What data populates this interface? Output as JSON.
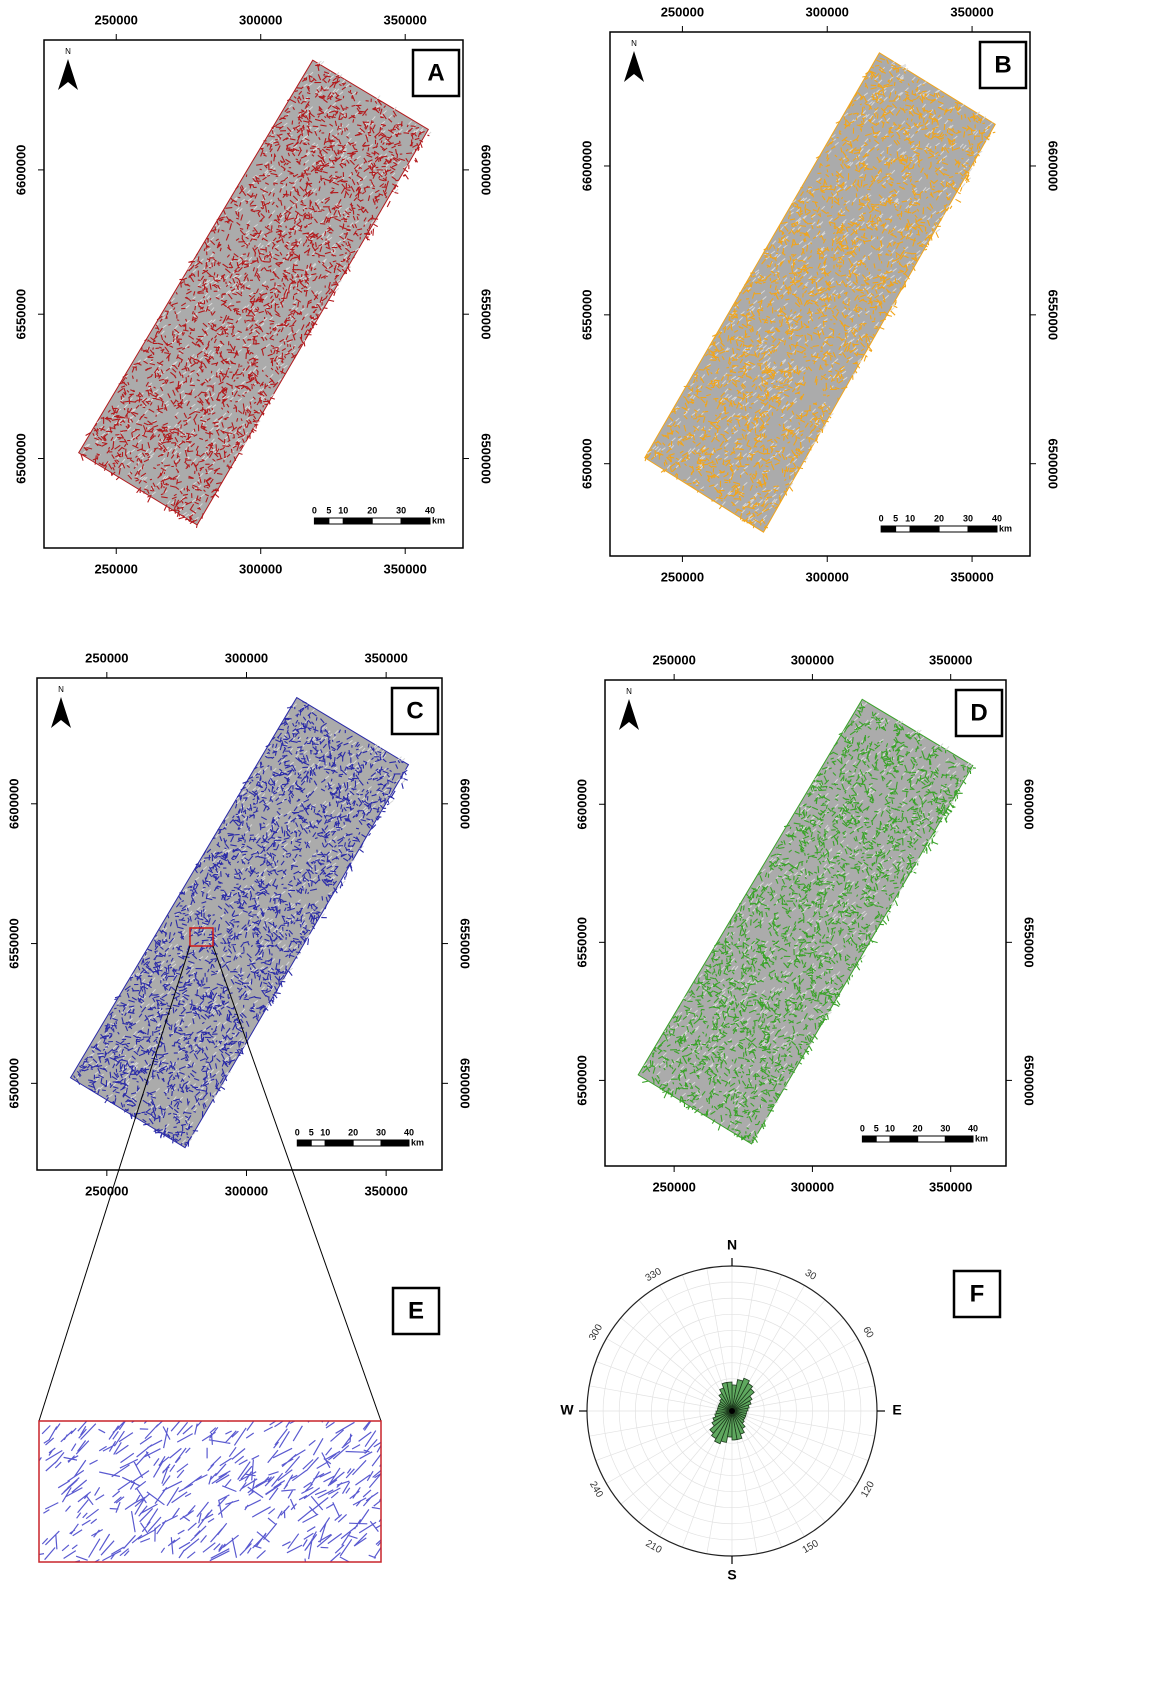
{
  "panels": [
    {
      "label": "A",
      "color": "#b3191c"
    },
    {
      "label": "B",
      "color": "#f2a51a"
    },
    {
      "label": "C",
      "color": "#2a2aa8"
    },
    {
      "label": "D",
      "color": "#3aa329"
    }
  ],
  "map": {
    "xlim": [
      225000,
      370000
    ],
    "ylim": [
      6469000,
      6645000
    ],
    "xticks": [
      250000,
      300000,
      350000
    ],
    "yticks": [
      6500000,
      6550000,
      6600000
    ],
    "north": "N",
    "scale": {
      "ticks": [
        0,
        5,
        10,
        20,
        30,
        40
      ],
      "unit": "km"
    },
    "footprint": {
      "x": [
        237000,
        318000,
        358000,
        278000
      ],
      "y": [
        6502000,
        6638000,
        6614000,
        6477000
      ]
    }
  },
  "inset": {
    "label": "E",
    "color": "#5a5ad0"
  },
  "rose": {
    "label": "F",
    "directions": [
      "N",
      "E",
      "S",
      "W"
    ],
    "angle_labels": [
      30,
      60,
      120,
      150,
      210,
      240,
      300,
      330
    ],
    "color": "#5fa85f",
    "bins": [
      5,
      15,
      25,
      35,
      45,
      55,
      65,
      75,
      85,
      95,
      105,
      115,
      125,
      135,
      145,
      155,
      165,
      175
    ],
    "values": [
      0.18,
      0.22,
      0.24,
      0.22,
      0.2,
      0.16,
      0.14,
      0.12,
      0.11,
      0.1,
      0.1,
      0.1,
      0.1,
      0.11,
      0.14,
      0.17,
      0.2,
      0.2
    ]
  }
}
